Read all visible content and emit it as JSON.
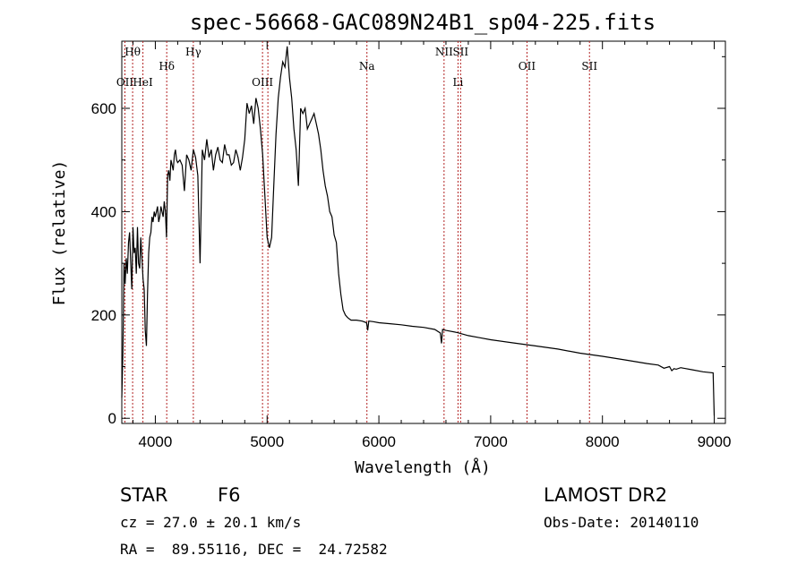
{
  "chart_data": {
    "type": "line",
    "title": "spec-56668-GAC089N24B1_sp04-225.fits",
    "xlabel": "Wavelength (Å)",
    "ylabel": "Flux (relative)",
    "xlim": [
      3700,
      9100
    ],
    "ylim": [
      -10,
      730
    ],
    "x_ticks": [
      4000,
      5000,
      6000,
      7000,
      8000,
      9000
    ],
    "y_ticks": [
      0,
      200,
      400,
      600
    ],
    "grid": false,
    "line_color": "#000000",
    "marker_color": "#b22222",
    "series": [
      {
        "x": [
          3700,
          3710,
          3720,
          3730,
          3740,
          3750,
          3760,
          3770,
          3780,
          3790,
          3800,
          3810,
          3820,
          3830,
          3840,
          3850,
          3860,
          3870,
          3880,
          3890,
          3900,
          3910,
          3920,
          3930,
          3940,
          3950,
          3960,
          3970,
          3980,
          3990,
          4000,
          4010,
          4020,
          4030,
          4040,
          4050,
          4060,
          4070,
          4080,
          4090,
          4100,
          4110,
          4120,
          4130,
          4140,
          4150,
          4160,
          4170,
          4180,
          4190,
          4200,
          4220,
          4240,
          4260,
          4280,
          4300,
          4320,
          4340,
          4360,
          4380,
          4400,
          4420,
          4440,
          4460,
          4480,
          4500,
          4520,
          4540,
          4560,
          4580,
          4600,
          4620,
          4640,
          4660,
          4680,
          4700,
          4720,
          4740,
          4760,
          4780,
          4800,
          4820,
          4840,
          4860,
          4880,
          4900,
          4920,
          4940,
          4960,
          4980,
          5000,
          5020,
          5040,
          5060,
          5080,
          5100,
          5120,
          5140,
          5160,
          5180,
          5200,
          5220,
          5240,
          5260,
          5280,
          5300,
          5320,
          5340,
          5360,
          5380,
          5400,
          5420,
          5440,
          5460,
          5480,
          5500,
          5520,
          5540,
          5560,
          5580,
          5600,
          5620,
          5640,
          5660,
          5680,
          5700,
          5720,
          5750,
          5800,
          5850,
          5890,
          5900,
          5910,
          5950,
          6000,
          6100,
          6200,
          6300,
          6400,
          6500,
          6550,
          6560,
          6570,
          6600,
          6700,
          6800,
          6900,
          7000,
          7200,
          7400,
          7600,
          7800,
          8000,
          8200,
          8400,
          8500,
          8550,
          8600,
          8620,
          8640,
          8660,
          8700,
          8800,
          8900,
          8990,
          9000
        ],
        "y": [
          40,
          125,
          300,
          260,
          310,
          280,
          340,
          360,
          300,
          250,
          370,
          320,
          330,
          280,
          370,
          300,
          290,
          350,
          310,
          270,
          250,
          170,
          140,
          240,
          320,
          350,
          360,
          390,
          380,
          400,
          390,
          400,
          410,
          380,
          390,
          410,
          400,
          390,
          420,
          400,
          350,
          470,
          480,
          460,
          500,
          490,
          480,
          510,
          520,
          500,
          495,
          500,
          490,
          440,
          510,
          500,
          480,
          520,
          505,
          470,
          300,
          520,
          500,
          540,
          505,
          520,
          480,
          510,
          525,
          500,
          495,
          530,
          510,
          510,
          490,
          495,
          520,
          505,
          480,
          505,
          540,
          610,
          590,
          605,
          570,
          620,
          600,
          560,
          510,
          430,
          350,
          330,
          350,
          450,
          550,
          620,
          660,
          690,
          680,
          720,
          660,
          620,
          560,
          520,
          450,
          600,
          590,
          600,
          560,
          570,
          580,
          590,
          570,
          550,
          520,
          480,
          450,
          430,
          400,
          390,
          355,
          340,
          280,
          240,
          210,
          200,
          195,
          190,
          190,
          188,
          185,
          170,
          188,
          187,
          185,
          183,
          181,
          178,
          176,
          172,
          165,
          145,
          172,
          170,
          166,
          160,
          156,
          152,
          146,
          140,
          134,
          126,
          120,
          113,
          106,
          103,
          97,
          100,
          92,
          96,
          95,
          98,
          94,
          90,
          88,
          5
        ]
      }
    ],
    "line_markers": [
      {
        "x": 3728,
        "label": "OII",
        "row": 3
      },
      {
        "x": 3797,
        "label": "Hθ",
        "row": 1
      },
      {
        "x": 3889,
        "label": "HeI",
        "row": 3
      },
      {
        "x": 4102,
        "label": "Hδ",
        "row": 2
      },
      {
        "x": 4340,
        "label": "Hγ",
        "row": 1
      },
      {
        "x": 4959,
        "label": "OIII",
        "row": 3
      },
      {
        "x": 5007,
        "label": "",
        "row": 3
      },
      {
        "x": 5893,
        "label": "Na",
        "row": 2
      },
      {
        "x": 6583,
        "label": "NII",
        "row": 1
      },
      {
        "x": 6708,
        "label": "Li",
        "row": 3
      },
      {
        "x": 6731,
        "label": "SII",
        "row": 1
      },
      {
        "x": 7325,
        "label": "OII",
        "row": 2
      },
      {
        "x": 7884,
        "label": "SII",
        "row": 2
      }
    ]
  },
  "info": {
    "object_class": "STAR",
    "subclass": "F6",
    "survey": "LAMOST DR2",
    "redshift": "cz = 27.0 ± 20.1 km/s",
    "obs_date": "Obs-Date: 20140110",
    "coords": "RA =  89.55116, DEC =  24.72582"
  }
}
